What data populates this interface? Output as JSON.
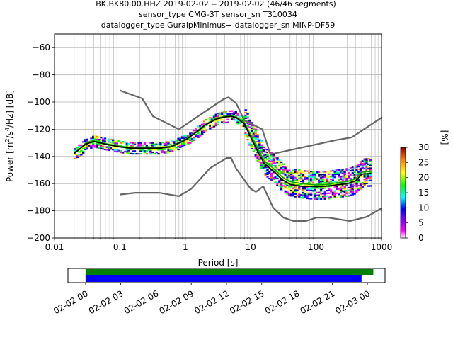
{
  "chart_data": [
    {
      "type": "heatmap",
      "title_lines": [
        "BK.BK80.00.HHZ   2019-02-02 -- 2019-02-02  (46/46 segments)",
        "sensor_type CMG-3T sensor_sn T310034",
        "datalogger_type GuralpMinimus+ datalogger_sn MINP-DF59"
      ],
      "xlabel": "Period [s]",
      "ylabel_parts": [
        "Power [m",
        "2",
        "/s",
        "4",
        "/Hz] [dB]"
      ],
      "xscale": "log",
      "xlim": [
        0.01,
        1000
      ],
      "ylim": [
        -200,
        -50
      ],
      "x_ticks": [
        {
          "v": 0.01,
          "label": "0.01"
        },
        {
          "v": 0.1,
          "label": "0.1"
        },
        {
          "v": 1,
          "label": "1"
        },
        {
          "v": 10,
          "label": "10"
        },
        {
          "v": 100,
          "label": "100"
        },
        {
          "v": 1000,
          "label": "1000"
        }
      ],
      "y_ticks": [
        {
          "v": -60,
          "label": "−60"
        },
        {
          "v": -80,
          "label": "−80"
        },
        {
          "v": -100,
          "label": "−100"
        },
        {
          "v": -120,
          "label": "−120"
        },
        {
          "v": -140,
          "label": "−140"
        },
        {
          "v": -160,
          "label": "−160"
        },
        {
          "v": -180,
          "label": "−180"
        },
        {
          "v": -200,
          "label": "−200"
        }
      ],
      "grid": true,
      "colorbar": {
        "label": "[%]",
        "ticks": [
          {
            "v": 0,
            "label": "0"
          },
          {
            "v": 5,
            "label": "5"
          },
          {
            "v": 10,
            "label": "10"
          },
          {
            "v": 15,
            "label": "15"
          },
          {
            "v": 20,
            "label": "20"
          },
          {
            "v": 25,
            "label": "25"
          },
          {
            "v": 30,
            "label": "30"
          }
        ],
        "range": [
          0,
          30
        ]
      },
      "noise_model_high": {
        "x": [
          0.1,
          0.22,
          0.32,
          0.8,
          3.8,
          4.6,
          6,
          8,
          15,
          20,
          200,
          350,
          1000
        ],
        "y": [
          -91.5,
          -97.4,
          -110.5,
          -120,
          -98,
          -96.5,
          -101,
          -113.5,
          -120,
          -138.5,
          -128,
          -126,
          -111.5
        ]
      },
      "noise_model_low": {
        "x": [
          0.1,
          0.17,
          0.4,
          0.8,
          1.24,
          2.4,
          4.3,
          5,
          6,
          10,
          12,
          15.6,
          21.9,
          31.6,
          45,
          70,
          101,
          154,
          328,
          600,
          1000
        ],
        "y": [
          -168,
          -166.7,
          -166.7,
          -169.2,
          -163.7,
          -148.6,
          -141.1,
          -141.1,
          -149,
          -163.8,
          -166,
          -162,
          -177.5,
          -185,
          -187.5,
          -187.5,
          -185,
          -185,
          -187.5,
          -184.4,
          -178.1
        ]
      },
      "median_curve": {
        "x": [
          0.02,
          0.025,
          0.03,
          0.04,
          0.06,
          0.1,
          0.15,
          0.25,
          0.4,
          0.6,
          1,
          1.5,
          2,
          3,
          4,
          5,
          6,
          8,
          10,
          13,
          16,
          20,
          25,
          30,
          40,
          60,
          80,
          100,
          150,
          200,
          300,
          400,
          500,
          700
        ],
        "y": [
          -138,
          -134,
          -131,
          -129,
          -131,
          -133,
          -134,
          -134,
          -134,
          -133,
          -128,
          -122,
          -117,
          -112.5,
          -111,
          -110.5,
          -111.5,
          -116,
          -126,
          -137,
          -145,
          -149,
          -153,
          -157,
          -160.5,
          -162,
          -162,
          -162.3,
          -161.8,
          -161,
          -160,
          -158,
          -153,
          -152.5
        ]
      },
      "mode_curve": {
        "x": [
          0.02,
          0.025,
          0.03,
          0.04,
          0.06,
          0.1,
          0.15,
          0.25,
          0.4,
          0.6,
          1,
          1.5,
          2,
          3,
          4,
          5,
          6,
          8,
          10,
          13,
          16,
          20,
          25,
          30,
          40,
          60,
          80,
          100,
          150,
          200,
          300,
          400,
          500,
          700
        ],
        "y": [
          -137,
          -134,
          -130,
          -128.5,
          -130.5,
          -132.5,
          -133.5,
          -133.5,
          -133.5,
          -132.5,
          -127.5,
          -121.5,
          -116.5,
          -112,
          -110.5,
          -110,
          -111,
          -115,
          -124,
          -135,
          -143,
          -147,
          -151,
          -155,
          -158.5,
          -160,
          -160.5,
          -161,
          -160.5,
          -159.5,
          -158.5,
          -156.5,
          -151.5,
          -151
        ]
      },
      "mean_curve": {
        "x": [
          0.02,
          0.025,
          0.03,
          0.04,
          0.06,
          0.1,
          0.15,
          0.25,
          0.4,
          0.6,
          1,
          1.5,
          2,
          3,
          4,
          5,
          6,
          8,
          10,
          13,
          16,
          20,
          25,
          30,
          40,
          60,
          80,
          100,
          150,
          200,
          300,
          400,
          500,
          700
        ],
        "y": [
          -137.5,
          -134.5,
          -130.5,
          -129,
          -131,
          -133,
          -134,
          -134,
          -134,
          -133,
          -128,
          -122,
          -117,
          -112,
          -110.5,
          -110,
          -111,
          -115.5,
          -125,
          -136,
          -144,
          -148,
          -152,
          -156,
          -159.5,
          -161,
          -161,
          -161.5,
          -161,
          -160,
          -159,
          -157,
          -152,
          -151.5
        ]
      }
    },
    {
      "type": "timeline",
      "xlim": [
        "2019-02-01 22:30",
        "2019-02-03 01:30"
      ],
      "x_ticks": [
        "02-02 00",
        "02-02 03",
        "02-02 06",
        "02-02 09",
        "02-02 12",
        "02-02 15",
        "02-02 18",
        "02-02 21",
        "02-03 00"
      ],
      "bars": [
        {
          "start": "2019-02-02 00:00",
          "end": "2019-02-03 00:30",
          "color": "#008000",
          "row": "top"
        },
        {
          "start": "2019-02-02 00:00",
          "end": "2019-02-02 23:30",
          "color": "#0000ff",
          "row": "bottom"
        }
      ]
    }
  ]
}
